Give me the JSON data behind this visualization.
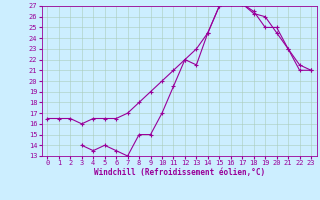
{
  "xlabel": "Windchill (Refroidissement éolien,°C)",
  "bg_color": "#cceeff",
  "grid_color": "#aaccbb",
  "line_color": "#990099",
  "spine_color": "#990099",
  "xlim": [
    -0.5,
    23.5
  ],
  "ylim": [
    13,
    27
  ],
  "xticks": [
    0,
    1,
    2,
    3,
    4,
    5,
    6,
    7,
    8,
    9,
    10,
    11,
    12,
    13,
    14,
    15,
    16,
    17,
    18,
    19,
    20,
    21,
    22,
    23
  ],
  "yticks": [
    13,
    14,
    15,
    16,
    17,
    18,
    19,
    20,
    21,
    22,
    23,
    24,
    25,
    26,
    27
  ],
  "line1_x": [
    0,
    1,
    2,
    3,
    4,
    5,
    6,
    7,
    8,
    9,
    10,
    11,
    12,
    13,
    14,
    15,
    16,
    17,
    18,
    19,
    20,
    21,
    22,
    23
  ],
  "line1_y": [
    16.5,
    16.5,
    16.5,
    16.0,
    16.5,
    16.5,
    16.5,
    17.0,
    18.0,
    19.0,
    20.0,
    21.0,
    22.0,
    23.0,
    24.5,
    27.0,
    27.2,
    27.2,
    26.5,
    25.0,
    25.0,
    23.0,
    21.0,
    21.0
  ],
  "line2_x": [
    3,
    4,
    5,
    6,
    7,
    8,
    9,
    10,
    11,
    12,
    13,
    14,
    15,
    16,
    17,
    18,
    19,
    20,
    21,
    22,
    23
  ],
  "line2_y": [
    14.0,
    13.5,
    14.0,
    13.5,
    13.0,
    15.0,
    15.0,
    17.0,
    19.5,
    22.0,
    21.5,
    24.5,
    27.0,
    27.3,
    27.2,
    26.3,
    26.0,
    24.5,
    23.0,
    21.5,
    21.0
  ],
  "xlabel_fontsize": 5.5,
  "tick_labelsize": 5.0,
  "marker": "+",
  "markersize": 3,
  "linewidth": 0.8
}
